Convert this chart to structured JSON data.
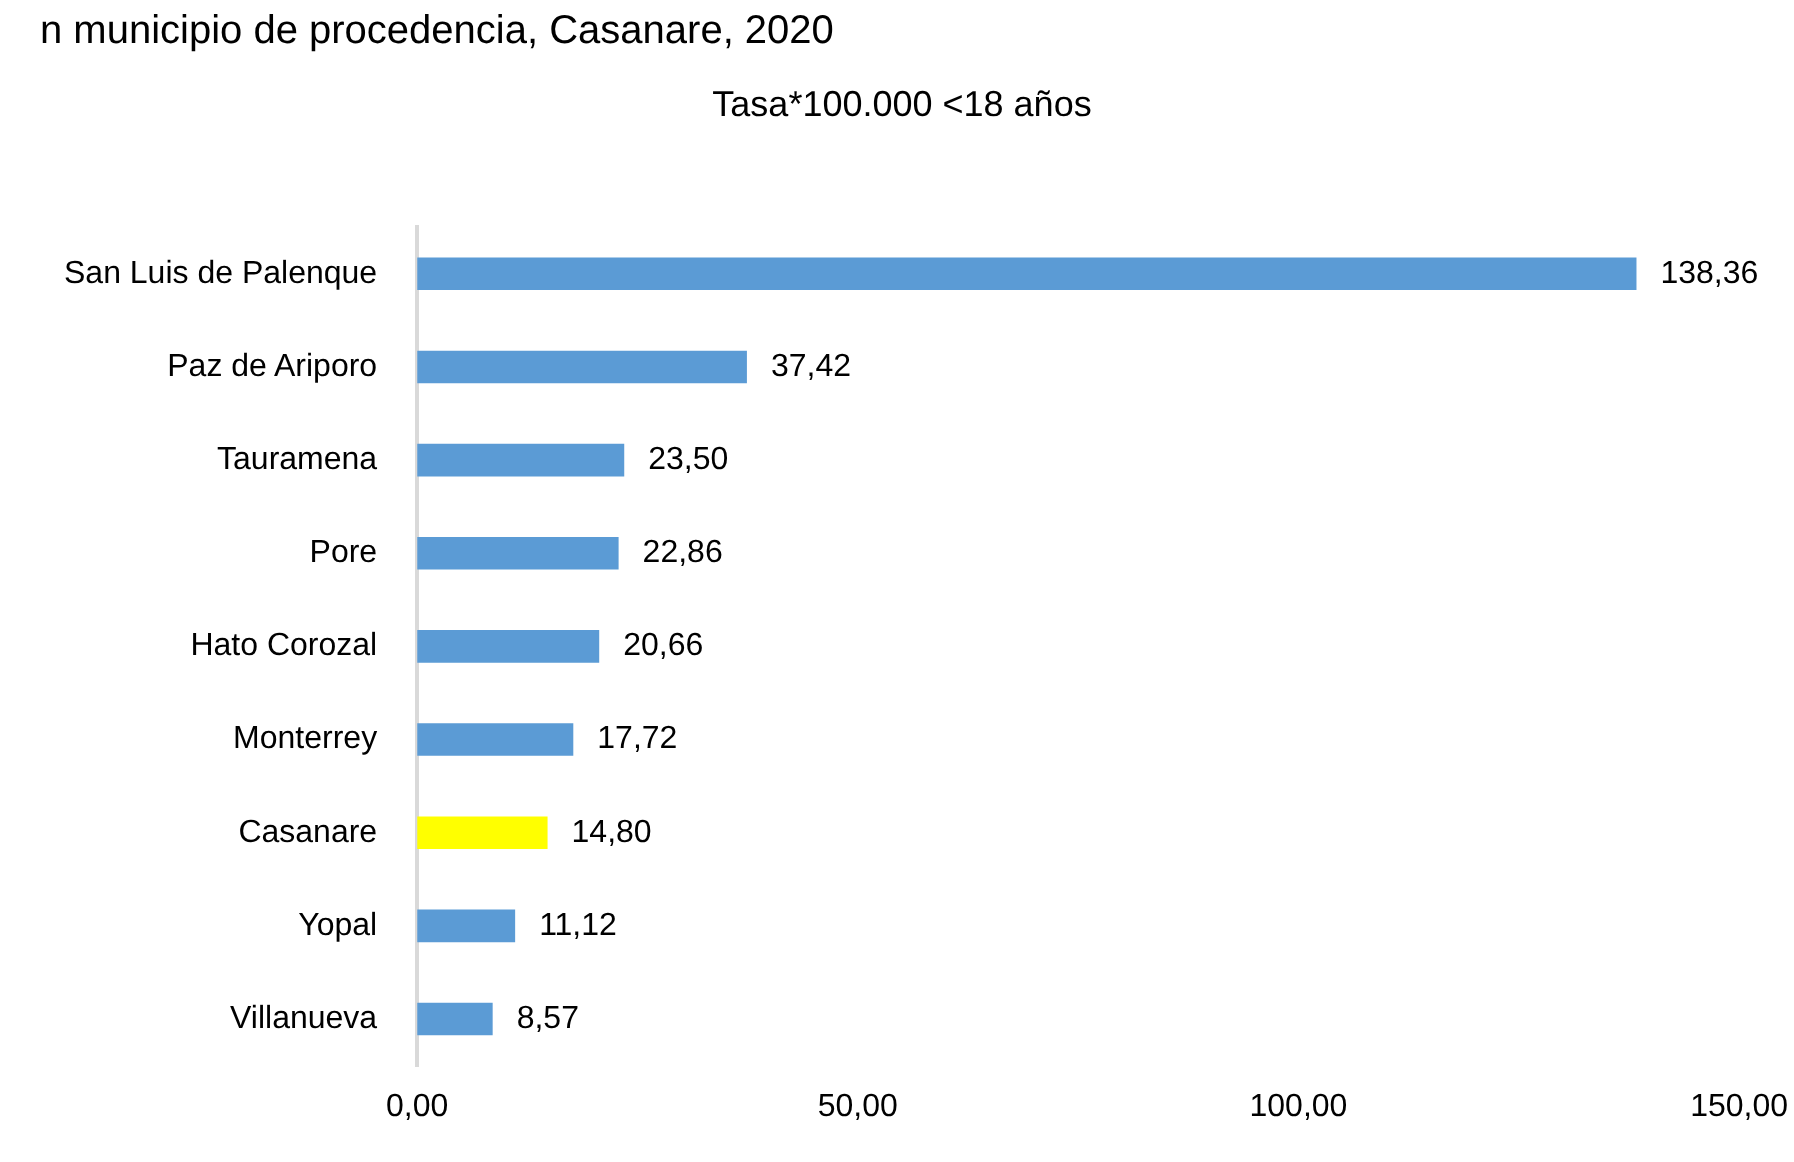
{
  "chart_data": {
    "type": "bar",
    "orientation": "horizontal",
    "title": "n municipio de procedencia, Casanare, 2020",
    "subtitle": "Tasa*100.000 <18 años",
    "categories": [
      "San Luis de Palenque",
      "Paz de Ariporo",
      "Tauramena",
      "Pore",
      "Hato Corozal",
      "Monterrey",
      "Casanare",
      "Yopal",
      "Villanueva"
    ],
    "values": [
      138.36,
      37.42,
      23.5,
      22.86,
      20.66,
      17.72,
      14.8,
      11.12,
      8.57
    ],
    "value_labels": [
      "138,36",
      "37,42",
      "23,50",
      "22,86",
      "20,66",
      "17,72",
      "14,80",
      "11,12",
      "8,57"
    ],
    "colors": [
      "#5b9bd5",
      "#5b9bd5",
      "#5b9bd5",
      "#5b9bd5",
      "#5b9bd5",
      "#5b9bd5",
      "#ffff00",
      "#5b9bd5",
      "#5b9bd5"
    ],
    "xlim": [
      0,
      150
    ],
    "xticks": [
      {
        "value": 0,
        "label": "0,00"
      },
      {
        "value": 50,
        "label": "50,00"
      },
      {
        "value": 100,
        "label": "100,00"
      },
      {
        "value": 150,
        "label": "150,00"
      }
    ],
    "grid": false,
    "legend": false
  }
}
